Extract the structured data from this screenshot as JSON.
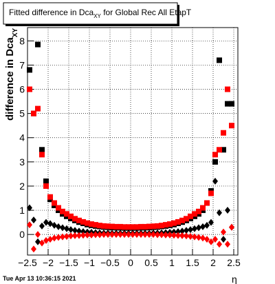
{
  "chart_data": {
    "type": "scatter",
    "title": "Fitted difference in Dca",
    "title_subscript": "XY",
    "title_rest": " for Global Rec All EtapT",
    "y_label": "difference in Dca",
    "y_label_subscript": "XY",
    "x_label": "η",
    "footer": "Tue Apr 13 10:36:15 2021",
    "xlim": [
      -2.5,
      2.6
    ],
    "ylim": [
      -0.85,
      8.55
    ],
    "xticks": [
      {
        "value": -2.5,
        "label": "−2.5"
      },
      {
        "value": -2,
        "label": "−2"
      },
      {
        "value": -1.5,
        "label": "−1.5"
      },
      {
        "value": -1,
        "label": "−1"
      },
      {
        "value": -0.5,
        "label": "−0.5"
      },
      0,
      0.5,
      1,
      1.5,
      2,
      2.5
    ],
    "yticks": [
      0,
      1,
      2,
      3,
      4,
      5,
      6,
      7,
      8
    ],
    "grid": true,
    "x": [
      -2.45,
      -2.35,
      -2.25,
      -2.15,
      -2.05,
      -1.95,
      -1.85,
      -1.75,
      -1.65,
      -1.55,
      -1.45,
      -1.35,
      -1.25,
      -1.15,
      -1.05,
      -0.95,
      -0.85,
      -0.75,
      -0.65,
      -0.55,
      -0.45,
      -0.35,
      -0.25,
      -0.15,
      -0.05,
      0.05,
      0.15,
      0.25,
      0.35,
      0.45,
      0.55,
      0.65,
      0.75,
      0.85,
      0.95,
      1.05,
      1.15,
      1.25,
      1.35,
      1.45,
      1.55,
      1.65,
      1.75,
      1.85,
      1.95,
      2.05,
      2.15,
      2.25,
      2.35,
      2.45
    ],
    "series": [
      {
        "marker": "square",
        "color": "#000000",
        "values": [
          6.8,
          5.0,
          7.85,
          3.5,
          2.2,
          1.45,
          1.2,
          1.0,
          0.85,
          0.75,
          0.66,
          0.58,
          0.51,
          0.46,
          0.41,
          0.38,
          0.35,
          0.33,
          0.31,
          0.3,
          0.29,
          0.28,
          0.28,
          0.27,
          0.27,
          0.27,
          0.27,
          0.28,
          0.28,
          0.29,
          0.3,
          0.31,
          0.33,
          0.35,
          0.38,
          0.41,
          0.46,
          0.51,
          0.58,
          0.66,
          0.75,
          0.85,
          1.0,
          1.3,
          1.8,
          3.0,
          7.2,
          3.5,
          5.4,
          5.4
        ]
      },
      {
        "marker": "square",
        "color": "#ff0000",
        "values": [
          6.0,
          5.0,
          5.2,
          3.3,
          2.0,
          1.55,
          1.3,
          1.1,
          0.95,
          0.85,
          0.75,
          0.65,
          0.58,
          0.52,
          0.47,
          0.43,
          0.4,
          0.37,
          0.35,
          0.34,
          0.33,
          0.32,
          0.32,
          0.31,
          0.31,
          0.31,
          0.31,
          0.32,
          0.32,
          0.33,
          0.34,
          0.35,
          0.37,
          0.4,
          0.43,
          0.47,
          0.52,
          0.58,
          0.65,
          0.75,
          0.85,
          0.95,
          1.1,
          1.3,
          1.7,
          3.3,
          3.5,
          4.2,
          6.0,
          4.5
        ]
      },
      {
        "marker": "diamond",
        "color": "#000000",
        "values": [
          1.1,
          0.6,
          -0.3,
          0.35,
          0.5,
          0.45,
          0.38,
          0.32,
          0.28,
          0.24,
          0.2,
          0.17,
          0.14,
          0.12,
          0.1,
          0.09,
          0.08,
          0.07,
          0.06,
          0.06,
          0.05,
          0.05,
          0.05,
          0.05,
          0.05,
          0.05,
          0.05,
          0.05,
          0.05,
          0.05,
          0.06,
          0.06,
          0.07,
          0.08,
          0.09,
          0.1,
          0.12,
          0.14,
          0.17,
          0.2,
          0.24,
          0.28,
          0.32,
          0.38,
          0.5,
          2.2,
          0.9,
          -0.2,
          1.0,
          0.3
        ]
      },
      {
        "marker": "diamond",
        "color": "#ff0000",
        "values": [
          0.4,
          -0.6,
          0.0,
          -0.35,
          -0.25,
          -0.2,
          -0.15,
          -0.12,
          -0.1,
          -0.08,
          -0.06,
          -0.05,
          -0.04,
          -0.03,
          -0.02,
          -0.02,
          -0.01,
          -0.01,
          0,
          0,
          0,
          0,
          0,
          0,
          0,
          0,
          0,
          0,
          0,
          0,
          0,
          -0.01,
          -0.01,
          -0.02,
          -0.02,
          -0.03,
          -0.04,
          -0.05,
          -0.06,
          -0.08,
          -0.1,
          -0.12,
          -0.15,
          -0.2,
          -0.3,
          -0.2,
          -0.4,
          0.1,
          -0.4,
          0.3
        ]
      }
    ]
  }
}
